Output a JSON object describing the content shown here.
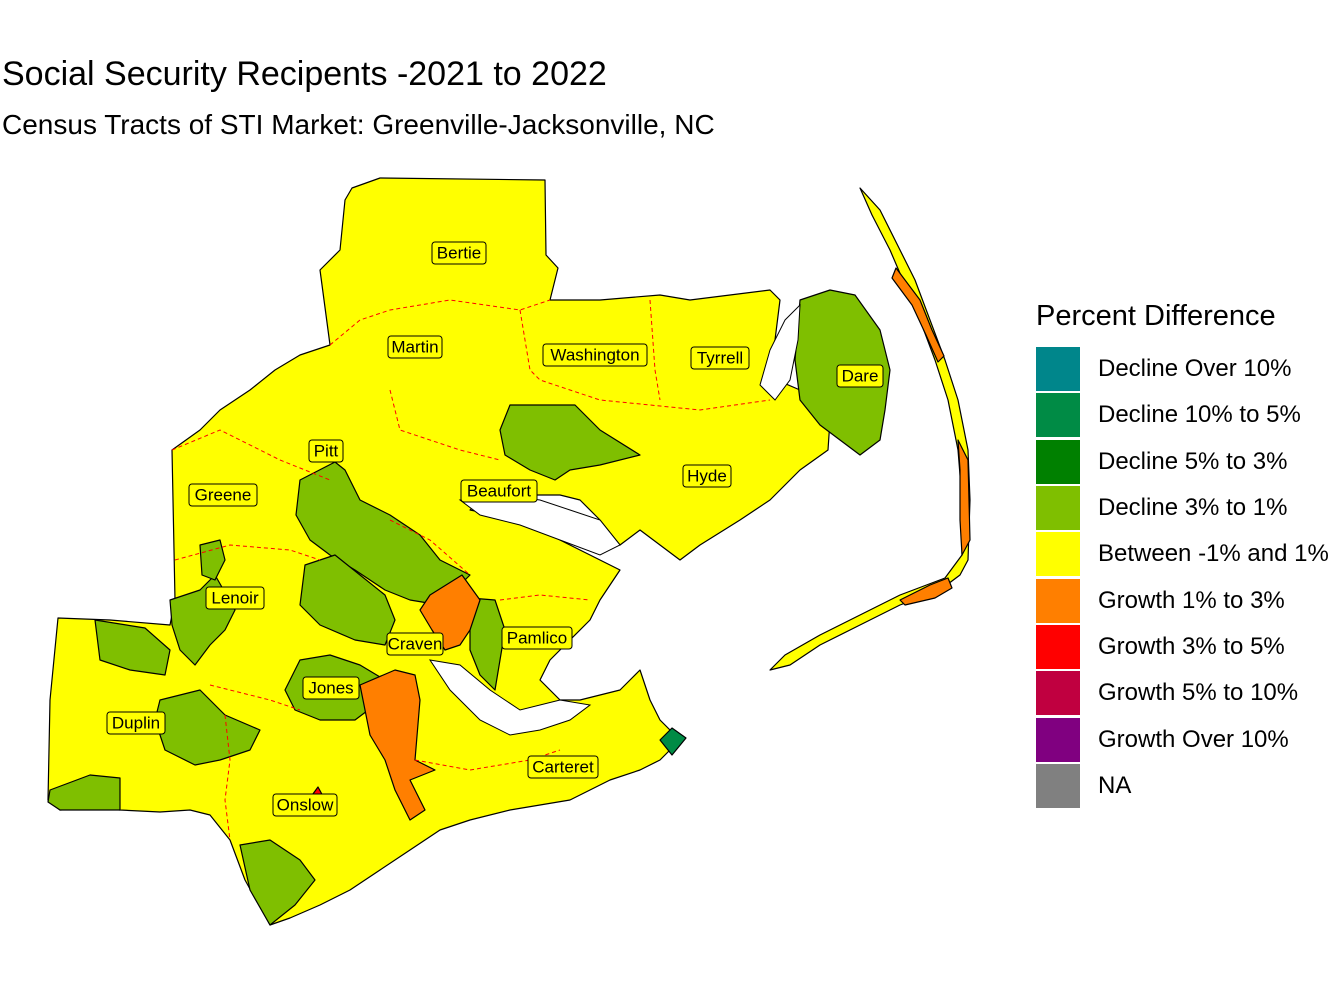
{
  "title": "Social Security Recipents -2021 to 2022",
  "subtitle": "Census Tracts of STI Market: Greenville-Jacksonville, NC",
  "legend": {
    "title": "Percent Difference",
    "items": [
      {
        "label": "Decline Over 10%",
        "color": "#00868B"
      },
      {
        "label": "Decline 10% to 5%",
        "color": "#008B45"
      },
      {
        "label": "Decline 5% to 3%",
        "color": "#008000"
      },
      {
        "label": "Decline 3% to 1%",
        "color": "#7FBF00"
      },
      {
        "label": "Between -1% and 1%",
        "color": "#FFFF00"
      },
      {
        "label": "Growth 1% to 3%",
        "color": "#FF7F00"
      },
      {
        "label": "Growth 3% to 5%",
        "color": "#FF0000"
      },
      {
        "label": "Growth 5% to 10%",
        "color": "#C00040"
      },
      {
        "label": "Growth Over 10%",
        "color": "#800080"
      },
      {
        "label": "NA",
        "color": "#808080"
      }
    ]
  },
  "counties": [
    {
      "name": "Bertie"
    },
    {
      "name": "Martin"
    },
    {
      "name": "Washington"
    },
    {
      "name": "Tyrrell"
    },
    {
      "name": "Dare"
    },
    {
      "name": "Pitt"
    },
    {
      "name": "Greene"
    },
    {
      "name": "Beaufort"
    },
    {
      "name": "Hyde"
    },
    {
      "name": "Lenoir"
    },
    {
      "name": "Craven"
    },
    {
      "name": "Pamlico"
    },
    {
      "name": "Jones"
    },
    {
      "name": "Duplin"
    },
    {
      "name": "Carteret"
    },
    {
      "name": "Onslow"
    }
  ]
}
